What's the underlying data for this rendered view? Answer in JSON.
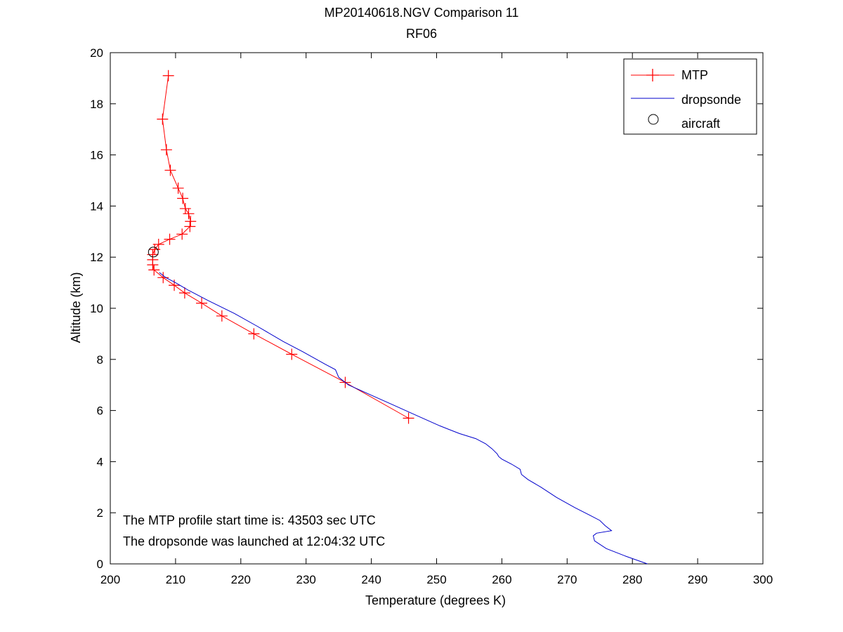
{
  "chart_data": {
    "type": "line",
    "title": "MP20140618.NGV Comparison 11",
    "subtitle": "RF06",
    "xlabel": "Temperature (degrees K)",
    "ylabel": "Altitude (km)",
    "xlim": [
      200,
      300
    ],
    "ylim": [
      0,
      20
    ],
    "xticks": [
      200,
      210,
      220,
      230,
      240,
      250,
      260,
      270,
      280,
      290,
      300
    ],
    "yticks": [
      0,
      2,
      4,
      6,
      8,
      10,
      12,
      14,
      16,
      18,
      20
    ],
    "grid": false,
    "legend_position": "top-right",
    "series": [
      {
        "name": "MTP",
        "color": "#ff0000",
        "marker": "plus",
        "x": [
          245.7,
          236.0,
          227.8,
          222.0,
          217.1,
          214.0,
          211.4,
          209.8,
          208.1,
          206.7,
          206.5,
          206.5,
          206.5,
          206.8,
          207.4,
          209.1,
          211.0,
          212.2,
          212.3,
          212.0,
          211.5,
          211.1,
          210.4,
          209.2,
          208.6,
          208.0,
          208.9
        ],
        "y": [
          5.7,
          7.1,
          8.2,
          9.0,
          9.7,
          10.2,
          10.6,
          10.9,
          11.2,
          11.5,
          11.7,
          11.9,
          12.1,
          12.3,
          12.5,
          12.7,
          12.9,
          13.2,
          13.4,
          13.7,
          13.9,
          14.3,
          14.7,
          15.4,
          16.2,
          17.4,
          19.1
        ]
      },
      {
        "name": "dropsonde",
        "color": "#0000cc",
        "marker": "none",
        "x": [
          282.3,
          279.0,
          276.0,
          274.2,
          274.0,
          274.5,
          276.8,
          275.8,
          275.0,
          273.5,
          271.2,
          268.4,
          266.0,
          264.0,
          263.0,
          262.8,
          261.5,
          260.0,
          259.5,
          259.3,
          258.5,
          257.5,
          256.0,
          253.5,
          250.5,
          247.0,
          243.5,
          240.0,
          236.5,
          235.0,
          234.5,
          233.0,
          229.5,
          226.5,
          222.5,
          219.0,
          215.0,
          212.0,
          210.0,
          208.5,
          207.5
        ],
        "y": [
          0.0,
          0.3,
          0.6,
          0.9,
          1.1,
          1.2,
          1.3,
          1.5,
          1.7,
          1.9,
          2.2,
          2.6,
          3.0,
          3.3,
          3.5,
          3.7,
          3.9,
          4.1,
          4.2,
          4.3,
          4.5,
          4.7,
          4.9,
          5.1,
          5.4,
          5.8,
          6.2,
          6.6,
          7.0,
          7.3,
          7.6,
          7.8,
          8.3,
          8.7,
          9.3,
          9.8,
          10.3,
          10.7,
          11.0,
          11.2,
          11.4
        ]
      },
      {
        "name": "aircraft",
        "color": "#000000",
        "marker": "circle",
        "x": [
          206.6
        ],
        "y": [
          12.2
        ]
      }
    ],
    "annotations": [
      "The MTP profile start time is: 43503 sec UTC",
      "The dropsonde was launched at 12:04:32 UTC"
    ]
  }
}
